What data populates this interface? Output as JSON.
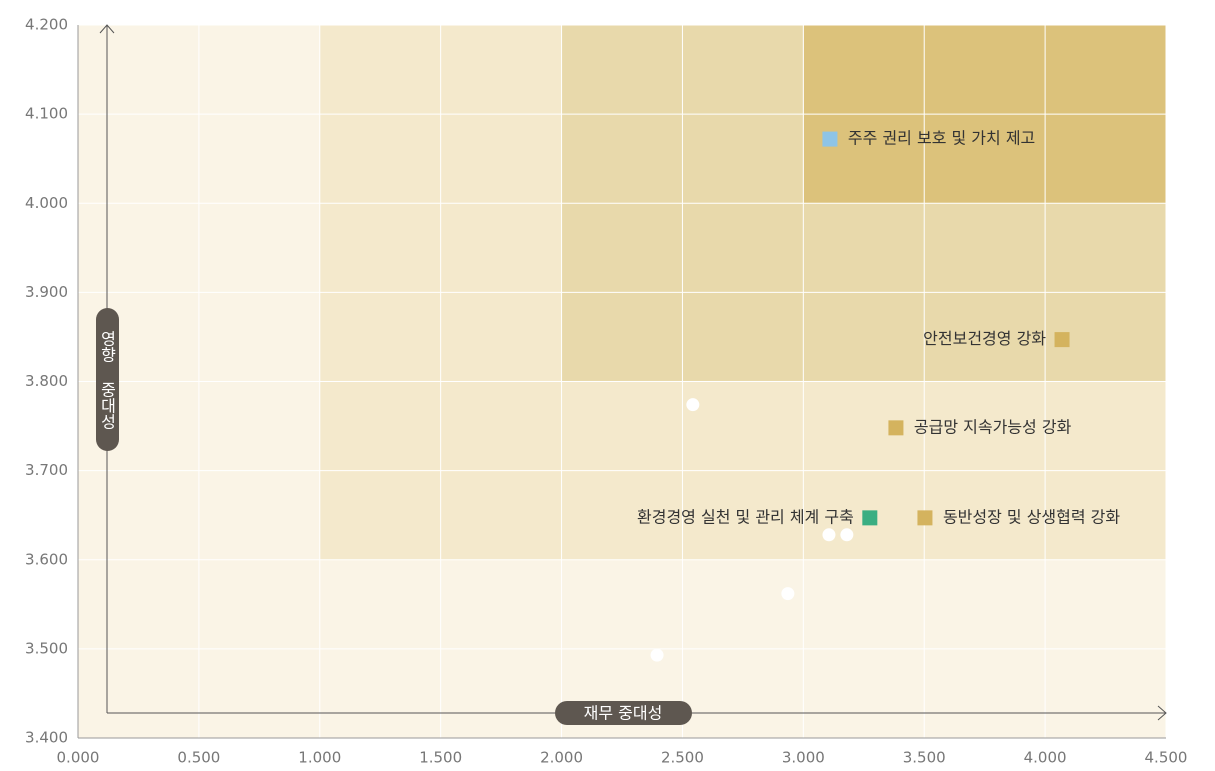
{
  "chart_data": {
    "type": "scatter",
    "x_label": "재무 중대성",
    "y_label": "영향 중대성",
    "xlim": [
      0,
      4.5
    ],
    "ylim": [
      3.4,
      4.2
    ],
    "xticks": [
      {
        "value": 0,
        "label": "0.000"
      },
      {
        "value": 0.5,
        "label": "0.500"
      },
      {
        "value": 1,
        "label": "1.000"
      },
      {
        "value": 1.5,
        "label": "1.500"
      },
      {
        "value": 2,
        "label": "2.000"
      },
      {
        "value": 2.5,
        "label": "2.500"
      },
      {
        "value": 3,
        "label": "3.000"
      },
      {
        "value": 3.5,
        "label": "3.500"
      },
      {
        "value": 4,
        "label": "4.000"
      },
      {
        "value": 4.5,
        "label": "4.500"
      }
    ],
    "yticks": [
      {
        "value": 3.4,
        "label": "3.400"
      },
      {
        "value": 3.5,
        "label": "3.500"
      },
      {
        "value": 3.6,
        "label": "3.600"
      },
      {
        "value": 3.7,
        "label": "3.700"
      },
      {
        "value": 3.8,
        "label": "3.800"
      },
      {
        "value": 3.9,
        "label": "3.900"
      },
      {
        "value": 4.0,
        "label": "4.000"
      },
      {
        "value": 4.1,
        "label": "4.100"
      },
      {
        "value": 4.2,
        "label": "4.200"
      }
    ],
    "grid": true,
    "points": [
      {
        "label": "주주 권리 보호 및 가치 제고",
        "x": 3.11,
        "y": 4.072,
        "color": "#8ec4e6",
        "marker": "square"
      },
      {
        "label": "안전보건경영 강화",
        "x": 4.07,
        "y": 3.847,
        "color": "#d4b35e",
        "marker": "square"
      },
      {
        "label": "공급망 지속가능성 강화",
        "x": 3.383,
        "y": 3.748,
        "color": "#d4b35e",
        "marker": "square"
      },
      {
        "label": "환경경영 실천 및 관리 체계 구축",
        "x": 3.275,
        "y": 3.647,
        "color": "#3aae82",
        "marker": "square"
      },
      {
        "label": "동반성장 및 상생협력 강화",
        "x": 3.503,
        "y": 3.647,
        "color": "#d4b35e",
        "marker": "square"
      },
      {
        "x": 2.543,
        "y": 3.774,
        "color": "#ffffff",
        "marker": "circle"
      },
      {
        "x": 3.106,
        "y": 3.628,
        "color": "#ffffff",
        "marker": "circle"
      },
      {
        "x": 3.18,
        "y": 3.628,
        "color": "#ffffff",
        "marker": "circle"
      },
      {
        "x": 2.936,
        "y": 3.562,
        "color": "#ffffff",
        "marker": "circle"
      },
      {
        "x": 2.395,
        "y": 3.493,
        "color": "#ffffff",
        "marker": "circle"
      }
    ]
  }
}
